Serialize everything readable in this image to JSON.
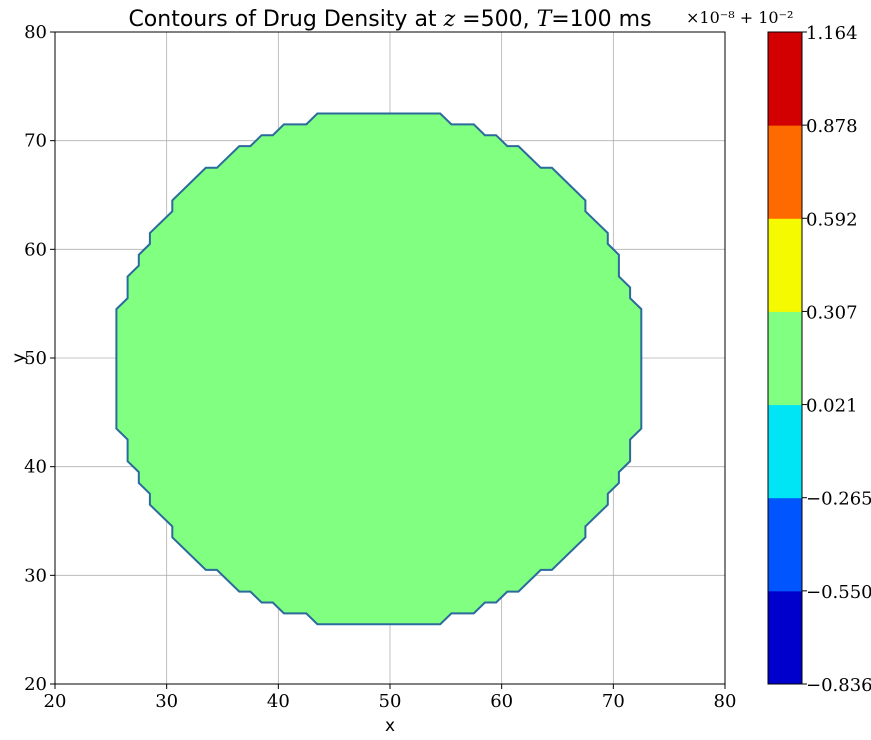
{
  "chart_data": [
    {
      "type": "contour",
      "title": "Contours of Drug Density at z =500, T=100 ms",
      "title_parts": [
        "Contours of Drug Density at ",
        "z",
        " =500, ",
        "T",
        "=100 ms"
      ],
      "xlabel": "x",
      "ylabel": "y",
      "xlim": [
        20,
        80
      ],
      "ylim": [
        20,
        80
      ],
      "xticks": [
        "20",
        "30",
        "40",
        "50",
        "60",
        "70",
        "80"
      ],
      "yticks": [
        "20",
        "30",
        "40",
        "50",
        "60",
        "70",
        "80"
      ],
      "grid": true,
      "region_color": "#80ff80",
      "outline_color": "#2b6a9c",
      "boundary": [
        [
          43.5,
          72.5
        ],
        [
          54.5,
          72.5
        ],
        [
          55.5,
          71.5
        ],
        [
          57.5,
          71.5
        ],
        [
          58.5,
          70.5
        ],
        [
          59.5,
          70.5
        ],
        [
          60.5,
          69.5
        ],
        [
          61.5,
          69.5
        ],
        [
          62.5,
          68.5
        ],
        [
          63.5,
          67.5
        ],
        [
          64.5,
          67.5
        ],
        [
          67.5,
          64.5
        ],
        [
          67.5,
          63.5
        ],
        [
          69.5,
          61.5
        ],
        [
          69.5,
          60.5
        ],
        [
          70.5,
          59.5
        ],
        [
          70.5,
          57.5
        ],
        [
          71.5,
          56.5
        ],
        [
          71.5,
          55.5
        ],
        [
          72.5,
          54.5
        ],
        [
          72.5,
          43.5
        ],
        [
          71.5,
          42.5
        ],
        [
          71.5,
          40.5
        ],
        [
          70.5,
          39.5
        ],
        [
          70.5,
          38.5
        ],
        [
          69.5,
          37.5
        ],
        [
          69.5,
          36.5
        ],
        [
          67.5,
          34.5
        ],
        [
          67.5,
          33.5
        ],
        [
          64.5,
          30.5
        ],
        [
          63.5,
          30.5
        ],
        [
          61.5,
          28.5
        ],
        [
          60.5,
          28.5
        ],
        [
          59.5,
          27.5
        ],
        [
          58.5,
          27.5
        ],
        [
          57.5,
          26.5
        ],
        [
          55.5,
          26.5
        ],
        [
          54.5,
          25.5
        ],
        [
          43.5,
          25.5
        ],
        [
          42.5,
          26.5
        ],
        [
          40.5,
          26.5
        ],
        [
          39.5,
          27.5
        ],
        [
          38.5,
          27.5
        ],
        [
          37.5,
          28.5
        ],
        [
          36.5,
          28.5
        ],
        [
          34.5,
          30.5
        ],
        [
          33.5,
          30.5
        ],
        [
          30.5,
          33.5
        ],
        [
          30.5,
          34.5
        ],
        [
          28.5,
          36.5
        ],
        [
          28.5,
          37.5
        ],
        [
          27.5,
          38.5
        ],
        [
          27.5,
          39.5
        ],
        [
          26.5,
          40.5
        ],
        [
          26.5,
          42.5
        ],
        [
          25.5,
          43.5
        ],
        [
          25.5,
          54.5
        ],
        [
          26.5,
          55.5
        ],
        [
          26.5,
          57.5
        ],
        [
          27.5,
          58.5
        ],
        [
          27.5,
          59.5
        ],
        [
          28.5,
          60.5
        ],
        [
          28.5,
          61.5
        ],
        [
          30.5,
          63.5
        ],
        [
          30.5,
          64.5
        ],
        [
          33.5,
          67.5
        ],
        [
          34.5,
          67.5
        ],
        [
          36.5,
          69.5
        ],
        [
          37.5,
          69.5
        ],
        [
          38.5,
          70.5
        ],
        [
          39.5,
          70.5
        ],
        [
          40.5,
          71.5
        ],
        [
          42.5,
          71.5
        ]
      ],
      "colorbar": {
        "offset_label": "×10⁻⁸ + 10⁻²",
        "ticks": [
          "1.164",
          "0.878",
          "0.592",
          "0.307",
          "0.021",
          "−0.265",
          "−0.550",
          "−0.836"
        ],
        "levels": [
          -0.836,
          -0.55,
          -0.265,
          0.021,
          0.307,
          0.592,
          0.878,
          1.164
        ],
        "colors": [
          "#0000cc",
          "#0055ff",
          "#00e5f5",
          "#80ff80",
          "#f5fa00",
          "#ff6a00",
          "#d20000"
        ]
      }
    }
  ]
}
